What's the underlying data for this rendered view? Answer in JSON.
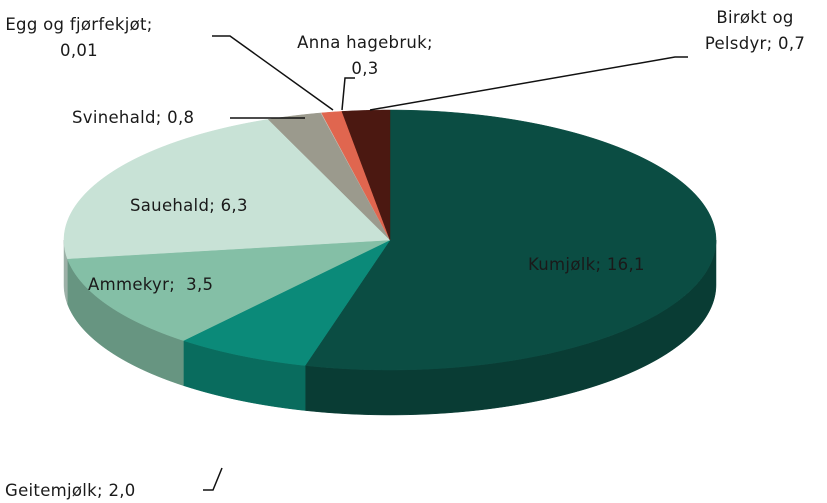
{
  "chart_data": {
    "type": "pie",
    "value_labels": [
      "Kumjølk; 16,1",
      "Geitemjølk; 2,0",
      "Ammekyr;  3,5",
      "Sauehald; 6,3",
      "Svinehald; 0,8",
      "Egg og fjørfekjøt; 0,01",
      "Anna hagebruk; 0,3",
      "Birøkt og Pelsdyr; 0,7"
    ],
    "values": [
      16.1,
      2.0,
      3.5,
      6.3,
      0.8,
      0.01,
      0.3,
      0.7
    ],
    "colors": [
      "#0b4d43",
      "#0b8a79",
      "#84bfa6",
      "#c8e2d6",
      "#9b9a8d",
      "#c9c9c0",
      "#e0664f",
      "#4b1811"
    ],
    "start_angle": 0,
    "direction": "clockwise",
    "three_d": true
  }
}
